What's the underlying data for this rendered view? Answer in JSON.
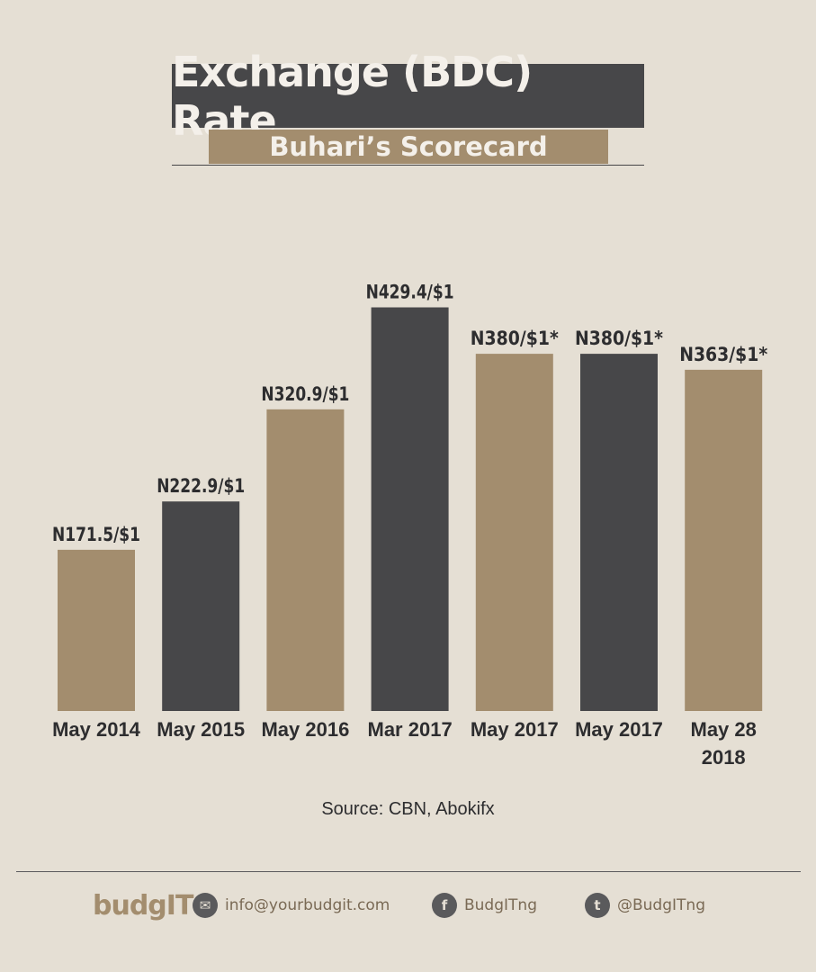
{
  "header": {
    "title": "Exchange (BDC) Rate",
    "subtitle": "Buhari’s Scorecard"
  },
  "chart_data": {
    "type": "bar",
    "categories": [
      "May 2014",
      "May 2015",
      "May 2016",
      "Mar 2017",
      "May 2017",
      "May 2017",
      "May 28 2018"
    ],
    "category_lines": [
      [
        "May 2014"
      ],
      [
        "May 2015"
      ],
      [
        "May 2016"
      ],
      [
        "Mar 2017"
      ],
      [
        "May 2017"
      ],
      [
        "May 2017"
      ],
      [
        "May 28",
        "2018"
      ]
    ],
    "values": [
      171.5,
      222.9,
      320.9,
      429.4,
      380,
      380,
      363
    ],
    "data_labels": [
      "N171.5/$1",
      "N222.9/$1",
      "N320.9/$1",
      "N429.4/$1",
      "N380/$1*",
      "N380/$1*",
      "N363/$1*"
    ],
    "bar_colors": [
      "#a38d6e",
      "#474749",
      "#a38d6e",
      "#474749",
      "#a38d6e",
      "#474749",
      "#a38d6e"
    ],
    "ylim": [
      0,
      450
    ],
    "grid": false,
    "xlabel": "",
    "ylabel": ""
  },
  "source": "Source: CBN, Abokifx",
  "footer": {
    "logo": "budgIT",
    "email": "info@yourbudgit.com",
    "facebook": "BudgITng",
    "twitter": "@BudgITng"
  },
  "colors": {
    "background": "#e5dfd4",
    "tan": "#a38d6e",
    "charcoal": "#474749"
  }
}
